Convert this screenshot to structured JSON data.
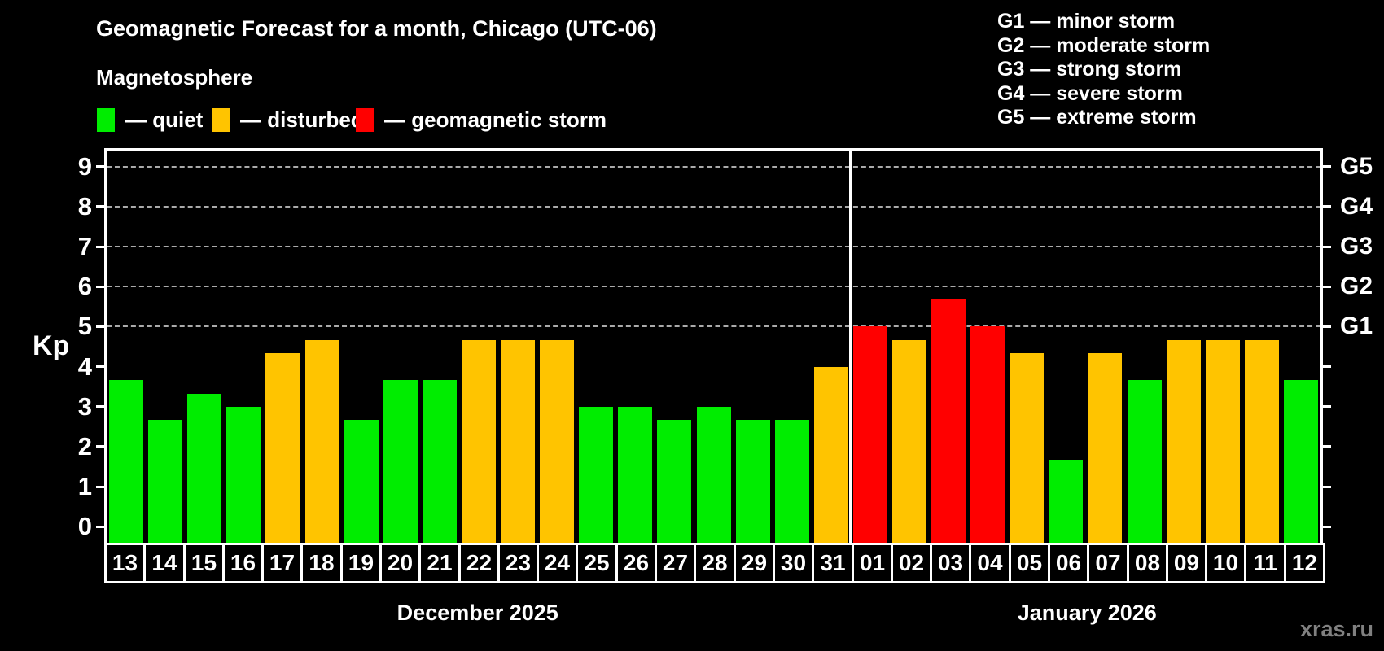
{
  "title": "Geomagnetic Forecast for a month, Chicago (UTC-06)",
  "subtitle": "Magnetosphere",
  "status_legend": {
    "items": [
      {
        "key": "quiet",
        "label": "— quiet"
      },
      {
        "key": "disturbed",
        "label": "— disturbed"
      },
      {
        "key": "storm",
        "label": "— geomagnetic storm"
      }
    ]
  },
  "g_scale_legend": {
    "items": [
      {
        "label": "G1 — minor storm"
      },
      {
        "label": "G2 — moderate storm"
      },
      {
        "label": "G3 — strong storm"
      },
      {
        "label": "G4 — severe storm"
      },
      {
        "label": "G5 — extreme storm"
      }
    ]
  },
  "watermark": "xras.ru",
  "colors": {
    "quiet": "#00ed00",
    "disturbed": "#ffc400",
    "storm": "#ff0000",
    "background": "#000000",
    "text": "#ffffff",
    "grid": "#aaaaaa",
    "watermark": "#808080"
  },
  "chart_data": {
    "type": "bar",
    "title": "Geomagnetic Forecast for a month, Chicago (UTC-06)",
    "xlabel": "",
    "ylabel": "Kp",
    "ylim": [
      -0.4,
      9.4
    ],
    "yticks": [
      0,
      1,
      2,
      3,
      4,
      5,
      6,
      7,
      8,
      9
    ],
    "gridlines_at": [
      5,
      6,
      7,
      8,
      9
    ],
    "grid": true,
    "legend_position": "top-left",
    "right_axis_labels": [
      {
        "kp": 5,
        "label": "G1"
      },
      {
        "kp": 6,
        "label": "G2"
      },
      {
        "kp": 7,
        "label": "G3"
      },
      {
        "kp": 8,
        "label": "G4"
      },
      {
        "kp": 9,
        "label": "G5"
      }
    ],
    "categories": [
      "13",
      "14",
      "15",
      "16",
      "17",
      "18",
      "19",
      "20",
      "21",
      "22",
      "23",
      "24",
      "25",
      "26",
      "27",
      "28",
      "29",
      "30",
      "31",
      "01",
      "02",
      "03",
      "04",
      "05",
      "06",
      "07",
      "08",
      "09",
      "10",
      "11",
      "12"
    ],
    "values": [
      3.67,
      2.67,
      3.33,
      3.0,
      4.33,
      4.67,
      2.67,
      3.67,
      3.67,
      4.67,
      4.67,
      4.67,
      3.0,
      3.0,
      2.67,
      3.0,
      2.67,
      2.67,
      4.0,
      5.0,
      4.67,
      5.67,
      5.0,
      4.33,
      1.67,
      4.33,
      3.67,
      4.67,
      4.67,
      4.67,
      3.67
    ],
    "statuses": [
      "quiet",
      "quiet",
      "quiet",
      "quiet",
      "disturbed",
      "disturbed",
      "quiet",
      "quiet",
      "quiet",
      "disturbed",
      "disturbed",
      "disturbed",
      "quiet",
      "quiet",
      "quiet",
      "quiet",
      "quiet",
      "quiet",
      "disturbed",
      "storm",
      "disturbed",
      "storm",
      "storm",
      "disturbed",
      "quiet",
      "disturbed",
      "quiet",
      "disturbed",
      "disturbed",
      "disturbed",
      "quiet"
    ],
    "month_split_index": 19,
    "months": [
      {
        "label": "December 2025",
        "days": 19
      },
      {
        "label": "January 2026",
        "days": 12
      }
    ]
  }
}
